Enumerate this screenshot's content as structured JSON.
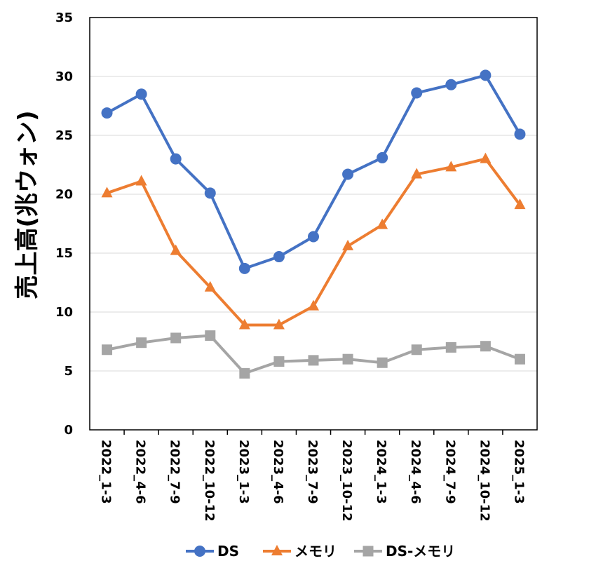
{
  "chart_data": {
    "type": "line",
    "title": "",
    "xlabel": "",
    "ylabel": "売上高(兆ウォン)",
    "ylim": [
      0,
      35
    ],
    "yticks": [
      0,
      5,
      10,
      15,
      20,
      25,
      30,
      35
    ],
    "grid": true,
    "legend_position": "bottom",
    "categories": [
      "2022_1-3",
      "2022_4-6",
      "2022_7-9",
      "2022_10-12",
      "2023_1-3",
      "2023_4-6",
      "2023_7-9",
      "2023_10-12",
      "2024_1-3",
      "2024_4-6",
      "2024_7-9",
      "2024_10-12",
      "2025_1-3"
    ],
    "series": [
      {
        "name": "DS",
        "color": "#4472C4",
        "marker": "circle",
        "values": [
          26.9,
          28.5,
          23.0,
          20.1,
          13.7,
          14.7,
          16.4,
          21.7,
          23.1,
          28.6,
          29.3,
          30.1,
          25.1
        ]
      },
      {
        "name": "メモリ",
        "color": "#ED7D31",
        "marker": "triangle",
        "values": [
          20.1,
          21.1,
          15.2,
          12.1,
          8.9,
          8.9,
          10.5,
          15.6,
          17.4,
          21.7,
          22.3,
          23.0,
          19.1
        ]
      },
      {
        "name": "DS-メモリ",
        "color": "#A5A5A5",
        "marker": "square",
        "values": [
          6.8,
          7.4,
          7.8,
          8.0,
          4.8,
          5.8,
          5.9,
          6.0,
          5.7,
          6.8,
          7.0,
          7.1,
          6.0
        ]
      }
    ]
  }
}
